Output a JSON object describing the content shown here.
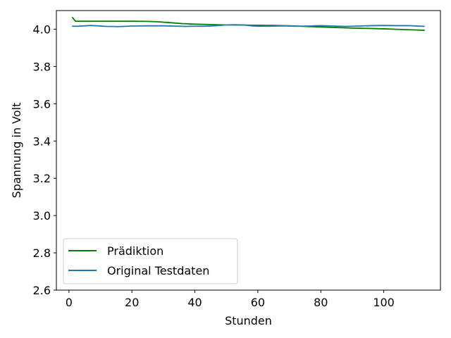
{
  "chart_data": {
    "type": "line",
    "xlabel": "Stunden",
    "ylabel": "Spannung in Volt",
    "xlim": [
      -4,
      118
    ],
    "ylim": [
      2.6,
      4.1
    ],
    "xticks": [
      0,
      20,
      40,
      60,
      80,
      100
    ],
    "yticks": [
      2.6,
      2.8,
      3.0,
      3.2,
      3.4,
      3.6,
      3.8,
      4.0
    ],
    "xtick_labels": [
      "0",
      "20",
      "40",
      "60",
      "80",
      "100"
    ],
    "ytick_labels": [
      "2.6",
      "2.8",
      "3.0",
      "3.2",
      "3.4",
      "3.6",
      "3.8",
      "4.0"
    ],
    "grid": false,
    "legend_position": "lower-left",
    "series": [
      {
        "name": "Prädiktion",
        "color": "#008000",
        "points": [
          [
            1,
            4.065
          ],
          [
            2,
            4.043
          ],
          [
            5,
            4.043
          ],
          [
            10,
            4.043
          ],
          [
            15,
            4.043
          ],
          [
            20,
            4.043
          ],
          [
            25,
            4.042
          ],
          [
            28,
            4.04
          ],
          [
            32,
            4.035
          ],
          [
            36,
            4.03
          ],
          [
            40,
            4.027
          ],
          [
            45,
            4.025
          ],
          [
            50,
            4.023
          ],
          [
            55,
            4.022
          ],
          [
            60,
            4.021
          ],
          [
            65,
            4.02
          ],
          [
            70,
            4.018
          ],
          [
            75,
            4.015
          ],
          [
            80,
            4.012
          ],
          [
            85,
            4.009
          ],
          [
            90,
            4.006
          ],
          [
            95,
            4.004
          ],
          [
            100,
            4.002
          ],
          [
            105,
            3.999
          ],
          [
            110,
            3.996
          ],
          [
            113,
            3.994
          ]
        ]
      },
      {
        "name": "Original Testdaten",
        "color": "#1f77b4",
        "points": [
          [
            1,
            4.016
          ],
          [
            3,
            4.016
          ],
          [
            5,
            4.018
          ],
          [
            7,
            4.02
          ],
          [
            9,
            4.018
          ],
          [
            12,
            4.015
          ],
          [
            16,
            4.014
          ],
          [
            20,
            4.017
          ],
          [
            25,
            4.018
          ],
          [
            30,
            4.018
          ],
          [
            33,
            4.017
          ],
          [
            37,
            4.015
          ],
          [
            40,
            4.016
          ],
          [
            43,
            4.016
          ],
          [
            46,
            4.018
          ],
          [
            50,
            4.023
          ],
          [
            53,
            4.024
          ],
          [
            56,
            4.022
          ],
          [
            58,
            4.018
          ],
          [
            60,
            4.016
          ],
          [
            63,
            4.016
          ],
          [
            66,
            4.017
          ],
          [
            68,
            4.018
          ],
          [
            72,
            4.016
          ],
          [
            76,
            4.017
          ],
          [
            80,
            4.019
          ],
          [
            84,
            4.017
          ],
          [
            88,
            4.015
          ],
          [
            92,
            4.017
          ],
          [
            96,
            4.019
          ],
          [
            100,
            4.02
          ],
          [
            104,
            4.019
          ],
          [
            108,
            4.019
          ],
          [
            112,
            4.016
          ],
          [
            113,
            4.015
          ]
        ]
      }
    ]
  }
}
